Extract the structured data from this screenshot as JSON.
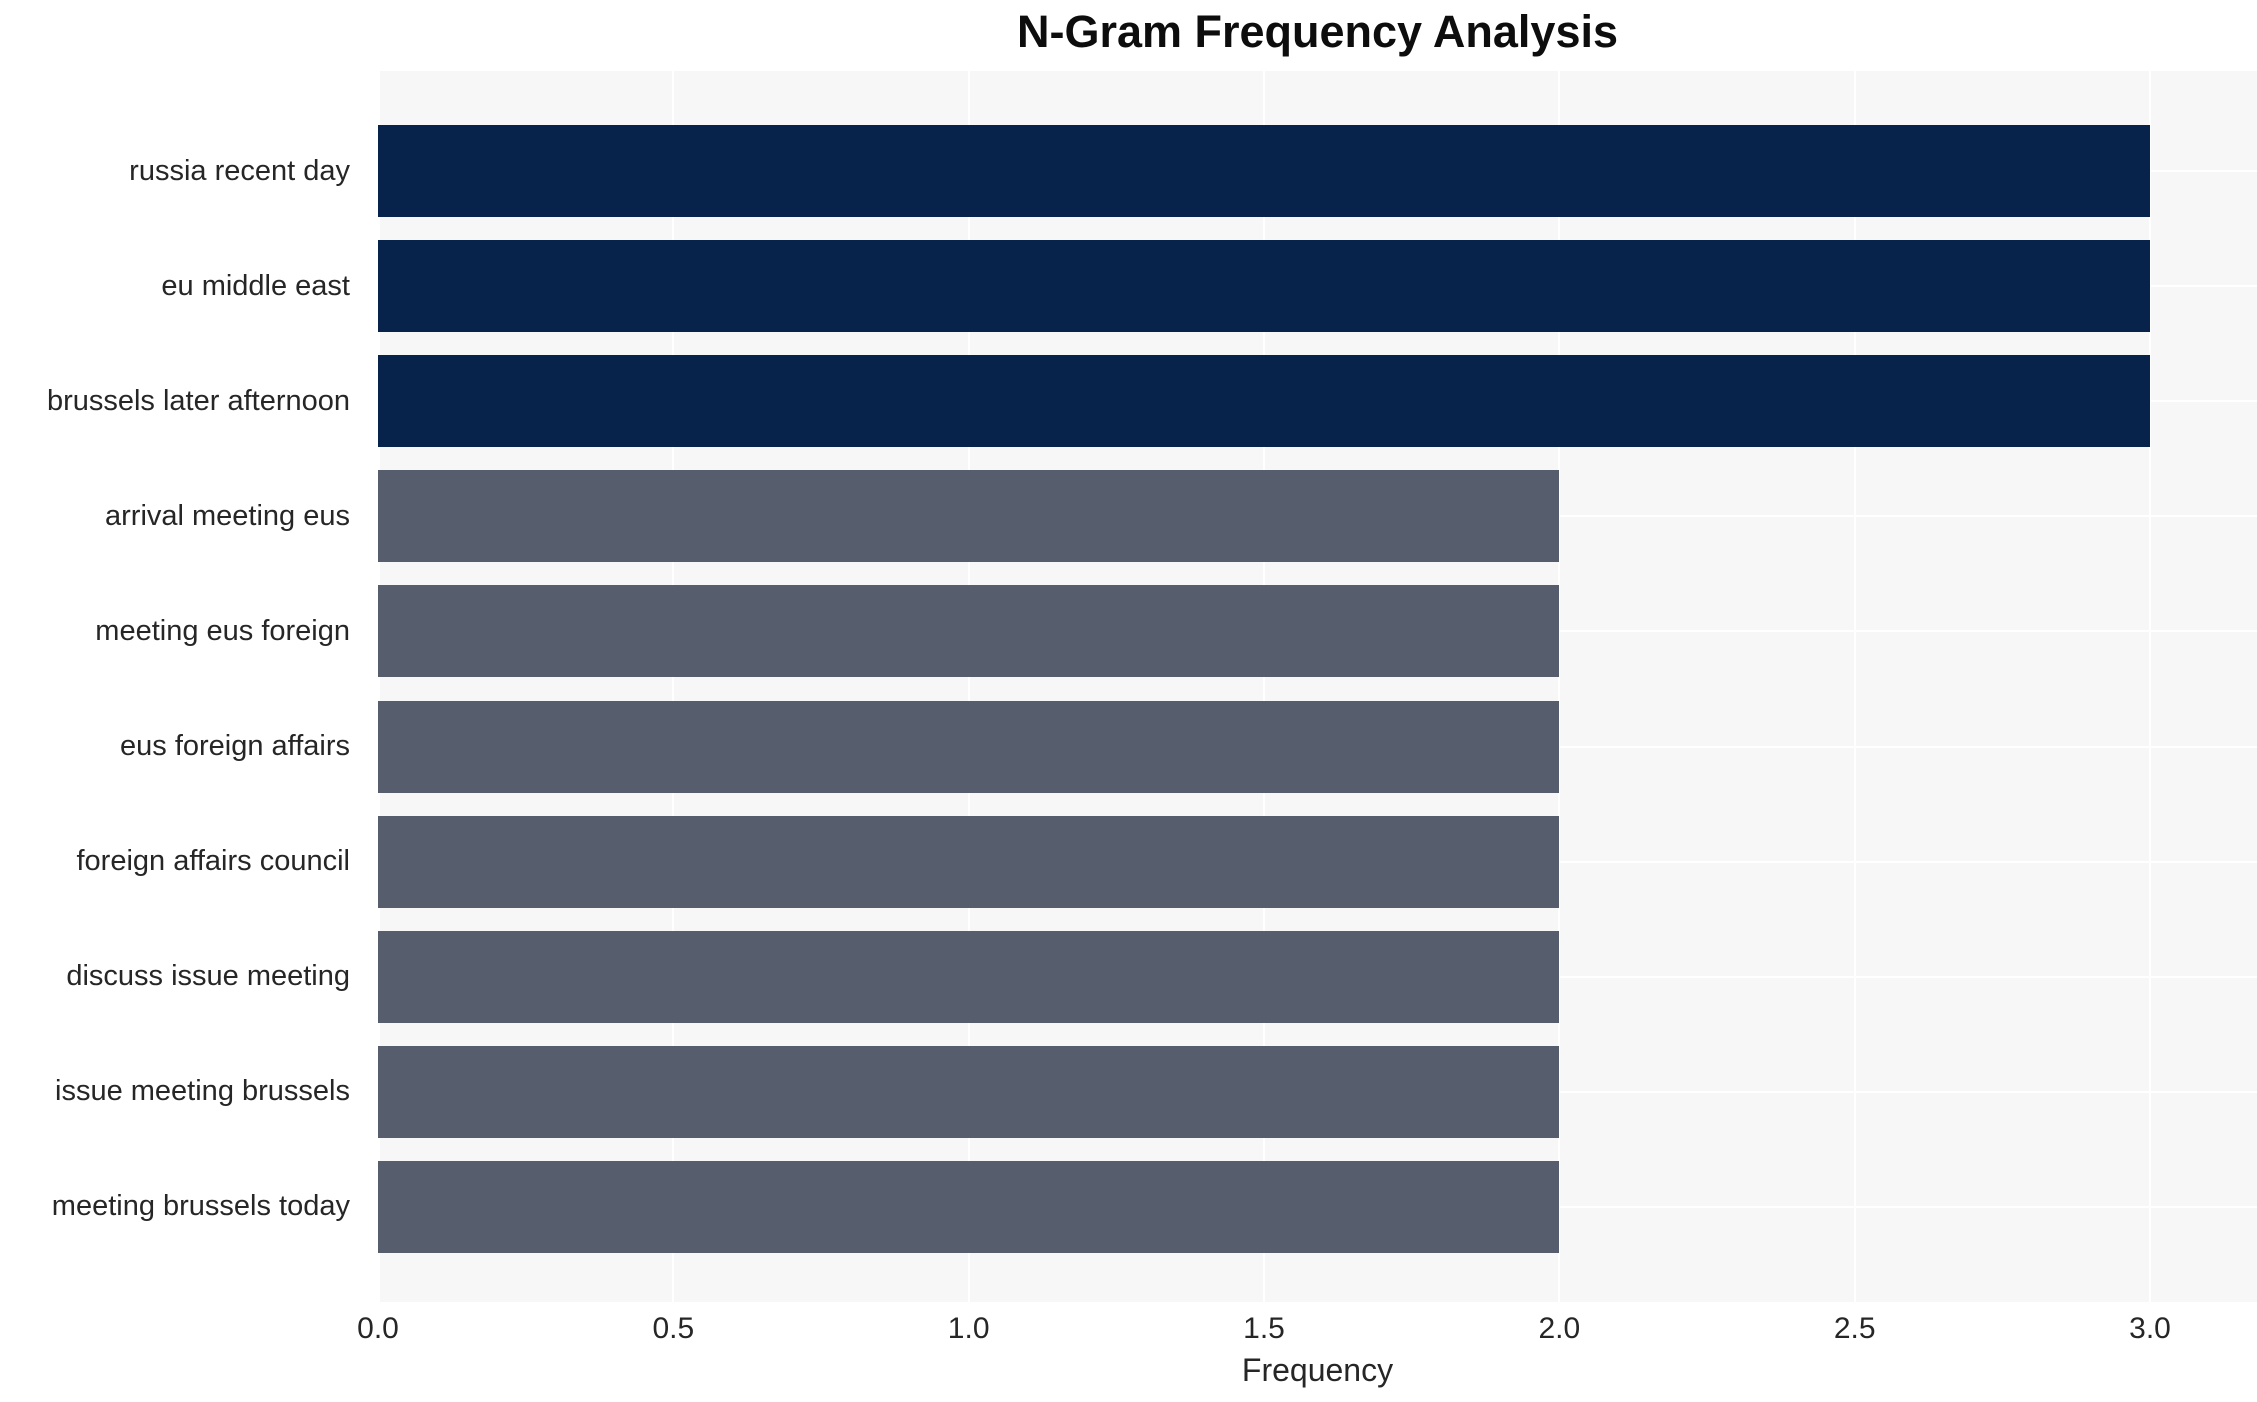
{
  "title": "N-Gram Frequency Analysis",
  "chart_data": {
    "type": "bar",
    "orientation": "horizontal",
    "title": "N-Gram Frequency Analysis",
    "xlabel": "Frequency",
    "ylabel": "",
    "categories": [
      "russia recent day",
      "eu middle east",
      "brussels later afternoon",
      "arrival meeting eus",
      "meeting eus foreign",
      "eus foreign affairs",
      "foreign affairs council",
      "discuss issue meeting",
      "issue meeting brussels",
      "meeting brussels today"
    ],
    "values": [
      3,
      3,
      3,
      2,
      2,
      2,
      2,
      2,
      2,
      2
    ],
    "bar_colors": [
      "#07234c",
      "#07234c",
      "#07234c",
      "#565d6c",
      "#565d6c",
      "#565d6c",
      "#565d6c",
      "#565d6c",
      "#565d6c",
      "#565d6c"
    ],
    "xticks": [
      "0.0",
      "0.5",
      "1.0",
      "1.5",
      "2.0",
      "2.5",
      "3.0"
    ],
    "xtick_values": [
      0,
      0.5,
      1,
      1.5,
      2,
      2.5,
      3
    ],
    "xlim": [
      0,
      3.18
    ],
    "grid": true,
    "plot_background": "#f7f7f8",
    "gridline_color": "#ffffff"
  }
}
